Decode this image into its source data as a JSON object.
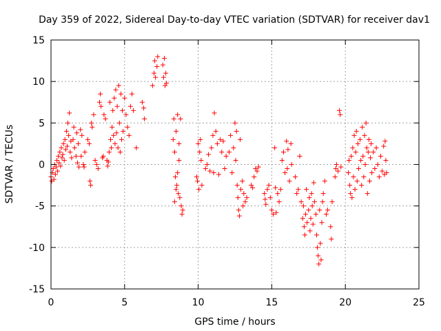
{
  "chart_data": {
    "type": "scatter",
    "title": "Day 359 of 2022, Sidereal Day-to-day VTEC variation (SDTVAR) for receiver dav1",
    "xlabel": "GPS time / hours",
    "ylabel": "SDTVAR / TECUs",
    "xlim": [
      0,
      25
    ],
    "ylim": [
      -15,
      15
    ],
    "xticks": [
      0,
      5,
      10,
      15,
      20,
      25
    ],
    "yticks": [
      -15,
      -10,
      -5,
      0,
      5,
      10,
      15
    ],
    "xtick_labels": [
      "0",
      "5",
      "10",
      "15",
      "20",
      "25"
    ],
    "ytick_labels": [
      "-15",
      "-10",
      "-5",
      "0",
      "5",
      "10",
      "15"
    ],
    "grid": true,
    "marker": "+",
    "color": "#ff0000",
    "series": [
      {
        "name": "SDTVAR",
        "points": [
          [
            0.0,
            -1.5
          ],
          [
            0.05,
            -2.0
          ],
          [
            0.1,
            -1.0
          ],
          [
            0.15,
            -0.5
          ],
          [
            0.2,
            -1.8
          ],
          [
            0.25,
            0.0
          ],
          [
            0.3,
            -1.2
          ],
          [
            0.35,
            -0.3
          ],
          [
            0.4,
            0.5
          ],
          [
            0.45,
            -0.8
          ],
          [
            0.5,
            1.0
          ],
          [
            0.55,
            0.2
          ],
          [
            0.6,
            1.5
          ],
          [
            0.65,
            -0.2
          ],
          [
            0.7,
            2.0
          ],
          [
            0.75,
            0.8
          ],
          [
            0.8,
            1.2
          ],
          [
            0.85,
            2.5
          ],
          [
            0.9,
            0.5
          ],
          [
            0.95,
            3.0
          ],
          [
            1.0,
            1.8
          ],
          [
            1.05,
            4.0
          ],
          [
            1.1,
            2.2
          ],
          [
            1.15,
            5.0
          ],
          [
            1.2,
            3.5
          ],
          [
            1.25,
            6.2
          ],
          [
            1.3,
            1.5
          ],
          [
            1.35,
            2.8
          ],
          [
            1.4,
            0.8
          ],
          [
            1.5,
            3.0
          ],
          [
            1.55,
            4.5
          ],
          [
            1.6,
            2.0
          ],
          [
            1.7,
            1.0
          ],
          [
            1.75,
            3.8
          ],
          [
            1.8,
            0.2
          ],
          [
            1.85,
            2.5
          ],
          [
            1.9,
            -0.3
          ],
          [
            2.0,
            4.2
          ],
          [
            2.05,
            1.0
          ],
          [
            2.1,
            3.5
          ],
          [
            2.2,
            0.0
          ],
          [
            2.25,
            -0.3
          ],
          [
            2.3,
            1.5
          ],
          [
            2.5,
            3.0
          ],
          [
            2.6,
            2.5
          ],
          [
            2.65,
            -2.0
          ],
          [
            2.7,
            -2.5
          ],
          [
            2.75,
            5.0
          ],
          [
            2.8,
            4.5
          ],
          [
            2.9,
            6.0
          ],
          [
            3.0,
            0.5
          ],
          [
            3.1,
            0.0
          ],
          [
            3.2,
            -0.5
          ],
          [
            3.3,
            7.5
          ],
          [
            3.35,
            8.5
          ],
          [
            3.4,
            7.0
          ],
          [
            3.5,
            0.8
          ],
          [
            3.55,
            1.0
          ],
          [
            3.6,
            6.0
          ],
          [
            3.7,
            5.5
          ],
          [
            3.8,
            0.5
          ],
          [
            3.85,
            -0.2
          ],
          [
            3.9,
            0.3
          ],
          [
            3.95,
            1.5
          ],
          [
            4.0,
            7.5
          ],
          [
            4.05,
            3.0
          ],
          [
            4.1,
            2.0
          ],
          [
            4.15,
            4.5
          ],
          [
            4.2,
            6.5
          ],
          [
            4.25,
            3.5
          ],
          [
            4.3,
            8.0
          ],
          [
            4.35,
            2.5
          ],
          [
            4.4,
            9.0
          ],
          [
            4.45,
            3.8
          ],
          [
            4.5,
            7.0
          ],
          [
            4.55,
            2.0
          ],
          [
            4.6,
            9.5
          ],
          [
            4.65,
            5.0
          ],
          [
            4.7,
            1.5
          ],
          [
            4.75,
            8.5
          ],
          [
            4.8,
            3.0
          ],
          [
            4.85,
            6.5
          ],
          [
            4.9,
            4.0
          ],
          [
            5.0,
            8.0
          ],
          [
            5.1,
            6.0
          ],
          [
            5.2,
            4.5
          ],
          [
            5.3,
            3.5
          ],
          [
            5.4,
            7.0
          ],
          [
            5.5,
            8.5
          ],
          [
            5.6,
            6.5
          ],
          [
            5.8,
            2.0
          ],
          [
            6.2,
            7.5
          ],
          [
            6.3,
            6.8
          ],
          [
            6.35,
            5.5
          ],
          [
            6.9,
            9.5
          ],
          [
            7.0,
            11.0
          ],
          [
            7.05,
            12.5
          ],
          [
            7.1,
            10.5
          ],
          [
            7.2,
            11.8
          ],
          [
            7.25,
            13.0
          ],
          [
            7.6,
            12.0
          ],
          [
            7.65,
            10.5
          ],
          [
            7.7,
            12.8
          ],
          [
            7.75,
            9.5
          ],
          [
            7.8,
            11.0
          ],
          [
            7.85,
            9.8
          ],
          [
            8.3,
            3.0
          ],
          [
            8.35,
            5.5
          ],
          [
            8.4,
            1.5
          ],
          [
            8.45,
            -1.5
          ],
          [
            8.5,
            4.0
          ],
          [
            8.55,
            -2.5
          ],
          [
            8.6,
            6.0
          ],
          [
            8.65,
            -3.5
          ],
          [
            8.7,
            2.5
          ],
          [
            8.75,
            -4.0
          ],
          [
            8.8,
            5.5
          ],
          [
            8.85,
            -5.0
          ],
          [
            8.9,
            -6.0
          ],
          [
            8.95,
            -5.5
          ],
          [
            8.4,
            -4.5
          ],
          [
            8.5,
            -3.0
          ],
          [
            8.6,
            -1.0
          ],
          [
            8.7,
            0.5
          ],
          [
            9.9,
            -1.5
          ],
          [
            9.95,
            -2.0
          ],
          [
            10.0,
            2.5
          ],
          [
            10.05,
            -3.0
          ],
          [
            10.1,
            1.5
          ],
          [
            10.15,
            3.0
          ],
          [
            10.2,
            0.5
          ],
          [
            10.25,
            -2.5
          ],
          [
            10.5,
            -0.5
          ],
          [
            10.6,
            0.0
          ],
          [
            10.7,
            1.2
          ],
          [
            10.8,
            -0.8
          ],
          [
            10.9,
            2.0
          ],
          [
            11.0,
            3.5
          ],
          [
            11.05,
            -1.0
          ],
          [
            11.1,
            6.2
          ],
          [
            11.2,
            4.0
          ],
          [
            11.3,
            2.5
          ],
          [
            11.4,
            -1.2
          ],
          [
            11.5,
            3.0
          ],
          [
            11.6,
            1.5
          ],
          [
            11.7,
            2.8
          ],
          [
            11.8,
            -0.5
          ],
          [
            11.9,
            1.0
          ],
          [
            12.1,
            1.5
          ],
          [
            12.2,
            3.5
          ],
          [
            12.3,
            -1.0
          ],
          [
            12.4,
            2.0
          ],
          [
            12.5,
            5.0
          ],
          [
            12.55,
            0.5
          ],
          [
            12.6,
            4.0
          ],
          [
            12.65,
            -2.5
          ],
          [
            12.7,
            -4.0
          ],
          [
            12.75,
            -5.5
          ],
          [
            12.8,
            -6.2
          ],
          [
            12.85,
            3.0
          ],
          [
            12.9,
            -3.0
          ],
          [
            13.0,
            -2.0
          ],
          [
            13.05,
            -5.0
          ],
          [
            13.1,
            -3.5
          ],
          [
            13.2,
            -4.5
          ],
          [
            13.3,
            -4.0
          ],
          [
            13.6,
            -2.5
          ],
          [
            13.7,
            -2.8
          ],
          [
            13.8,
            -1.5
          ],
          [
            13.9,
            -0.5
          ],
          [
            14.0,
            -0.8
          ],
          [
            14.1,
            -0.3
          ],
          [
            14.5,
            -3.5
          ],
          [
            14.55,
            -4.2
          ],
          [
            14.6,
            -4.8
          ],
          [
            14.7,
            -3.0
          ],
          [
            14.8,
            -2.5
          ],
          [
            14.9,
            -4.0
          ],
          [
            15.0,
            -5.5
          ],
          [
            15.1,
            -6.0
          ],
          [
            15.2,
            2.0
          ],
          [
            15.25,
            -2.8
          ],
          [
            15.3,
            -5.8
          ],
          [
            15.4,
            -3.5
          ],
          [
            15.5,
            -4.5
          ],
          [
            15.6,
            -3.0
          ],
          [
            15.7,
            0.5
          ],
          [
            15.8,
            1.5
          ],
          [
            15.9,
            -1.0
          ],
          [
            16.0,
            2.8
          ],
          [
            16.05,
            -0.5
          ],
          [
            16.1,
            1.8
          ],
          [
            16.2,
            -2.0
          ],
          [
            16.3,
            2.5
          ],
          [
            16.35,
            0.0
          ],
          [
            16.6,
            -1.5
          ],
          [
            16.7,
            -3.5
          ],
          [
            16.8,
            -3.0
          ],
          [
            16.9,
            1.0
          ],
          [
            17.0,
            -4.5
          ],
          [
            17.1,
            -6.5
          ],
          [
            17.15,
            -5.0
          ],
          [
            17.2,
            -7.5
          ],
          [
            17.25,
            -8.5
          ],
          [
            17.3,
            -6.0
          ],
          [
            17.35,
            -3.0
          ],
          [
            17.4,
            -7.0
          ],
          [
            17.5,
            -5.5
          ],
          [
            17.55,
            -4.0
          ],
          [
            17.6,
            -8.0
          ],
          [
            17.65,
            -6.5
          ],
          [
            17.7,
            -3.5
          ],
          [
            17.75,
            -5.0
          ],
          [
            17.8,
            -7.2
          ],
          [
            17.85,
            -2.2
          ],
          [
            17.9,
            -4.5
          ],
          [
            18.0,
            -6.0
          ],
          [
            18.05,
            -8.5
          ],
          [
            18.1,
            -10.0
          ],
          [
            18.15,
            -11.0
          ],
          [
            18.2,
            -12.0
          ],
          [
            18.25,
            -5.5
          ],
          [
            18.3,
            -9.5
          ],
          [
            18.35,
            -11.5
          ],
          [
            18.4,
            -7.0
          ],
          [
            18.45,
            -4.5
          ],
          [
            18.5,
            -3.5
          ],
          [
            18.6,
            -2.0
          ],
          [
            18.7,
            -6.0
          ],
          [
            18.8,
            -5.5
          ],
          [
            19.0,
            -7.5
          ],
          [
            19.05,
            -9.0
          ],
          [
            19.1,
            -4.5
          ],
          [
            19.3,
            -1.5
          ],
          [
            19.35,
            -0.5
          ],
          [
            19.4,
            0.0
          ],
          [
            19.5,
            -0.8
          ],
          [
            19.6,
            6.5
          ],
          [
            19.65,
            6.0
          ],
          [
            19.7,
            -0.3
          ],
          [
            20.2,
            -1.0
          ],
          [
            20.25,
            0.5
          ],
          [
            20.3,
            -2.5
          ],
          [
            20.35,
            -3.5
          ],
          [
            20.4,
            1.0
          ],
          [
            20.45,
            -4.0
          ],
          [
            20.5,
            2.0
          ],
          [
            20.55,
            -1.5
          ],
          [
            20.6,
            3.5
          ],
          [
            20.65,
            -3.0
          ],
          [
            20.7,
            1.5
          ],
          [
            20.75,
            4.0
          ],
          [
            20.8,
            -2.0
          ],
          [
            20.85,
            2.5
          ],
          [
            20.9,
            -0.5
          ],
          [
            21.0,
            3.0
          ],
          [
            21.05,
            0.5
          ],
          [
            21.1,
            -2.5
          ],
          [
            21.15,
            4.5
          ],
          [
            21.2,
            1.0
          ],
          [
            21.25,
            -1.5
          ],
          [
            21.3,
            3.5
          ],
          [
            21.35,
            0.0
          ],
          [
            21.4,
            5.0
          ],
          [
            21.45,
            2.0
          ],
          [
            21.5,
            -3.5
          ],
          [
            21.55,
            1.5
          ],
          [
            21.6,
            3.0
          ],
          [
            21.65,
            -2.0
          ],
          [
            21.7,
            0.8
          ],
          [
            21.75,
            2.5
          ],
          [
            21.8,
            -1.0
          ],
          [
            21.9,
            1.5
          ],
          [
            22.0,
            -0.5
          ],
          [
            22.1,
            2.0
          ],
          [
            22.2,
            0.0
          ],
          [
            22.3,
            -1.5
          ],
          [
            22.4,
            1.0
          ],
          [
            22.5,
            -0.8
          ],
          [
            22.6,
            2.2
          ],
          [
            22.65,
            -1.2
          ],
          [
            22.7,
            2.8
          ],
          [
            22.75,
            0.5
          ],
          [
            22.8,
            -1.0
          ]
        ]
      }
    ]
  }
}
